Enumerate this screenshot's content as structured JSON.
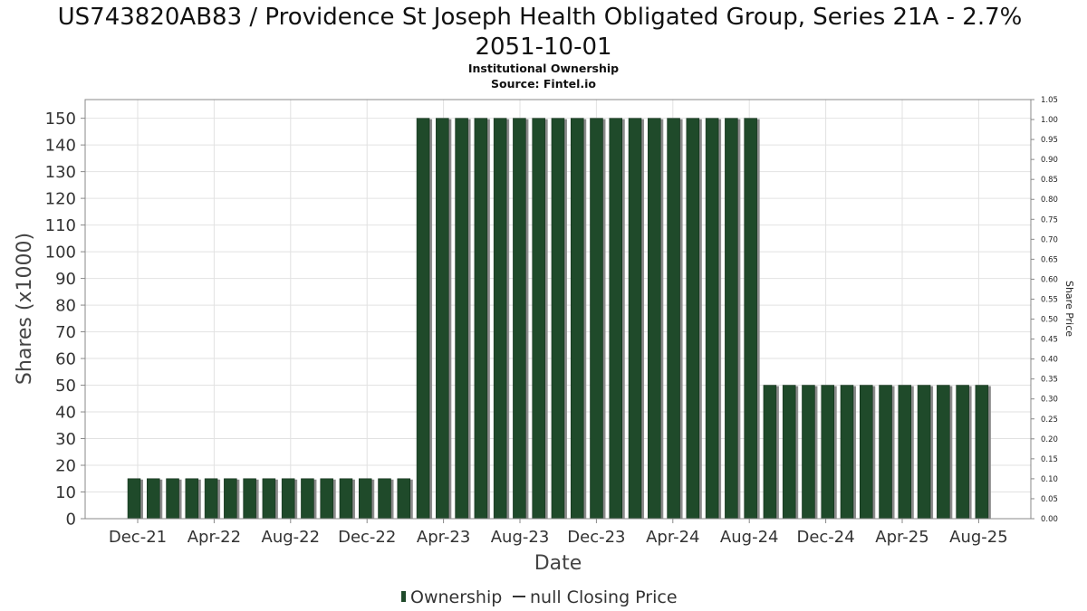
{
  "chart_data": {
    "type": "bar",
    "title_lines": [
      "US743820AB83 / Providence St Joseph Health Obligated Group, Series 21A - 2.7%",
      "2051-10-01"
    ],
    "subtitle_lines": [
      "Institutional Ownership",
      "Source: Fintel.io"
    ],
    "xlabel": "Date",
    "ylabel": "Shares (x1000)",
    "y2label": "Share Price",
    "ylim": [
      0,
      157
    ],
    "y2lim": [
      0,
      1.05
    ],
    "yticks": [
      0,
      10,
      20,
      30,
      40,
      50,
      60,
      70,
      80,
      90,
      100,
      110,
      120,
      130,
      140,
      150
    ],
    "y2ticks": [
      "0.00",
      "0.05",
      "0.10",
      "0.15",
      "0.20",
      "0.25",
      "0.30",
      "0.35",
      "0.40",
      "0.45",
      "0.50",
      "0.55",
      "0.60",
      "0.65",
      "0.70",
      "0.75",
      "0.80",
      "0.85",
      "0.90",
      "0.95",
      "1.00",
      "1.05"
    ],
    "x_tick_labels": [
      "Dec-21",
      "Apr-22",
      "Aug-22",
      "Dec-22",
      "Apr-23",
      "Aug-23",
      "Dec-23",
      "Apr-24",
      "Aug-24",
      "Dec-24",
      "Apr-25",
      "Aug-25"
    ],
    "grid": true,
    "legend_position": "bottom",
    "legend": [
      {
        "label": "Ownership",
        "marker": "bar"
      },
      {
        "label": "null Closing Price",
        "marker": "line"
      }
    ],
    "colors": {
      "bar": "#1f4a2a",
      "bar_shadow": "#8c8c8c",
      "grid": "#e2e2e2",
      "axis": "#888888"
    },
    "series": [
      {
        "name": "Ownership",
        "values": [
          15,
          15,
          15,
          15,
          15,
          15,
          15,
          15,
          15,
          15,
          15,
          15,
          15,
          15,
          15,
          150,
          150,
          150,
          150,
          150,
          150,
          150,
          150,
          150,
          150,
          150,
          150,
          150,
          150,
          150,
          150,
          150,
          150,
          50,
          50,
          50,
          50,
          50,
          50,
          50,
          50,
          50,
          50,
          50,
          50
        ]
      }
    ]
  }
}
